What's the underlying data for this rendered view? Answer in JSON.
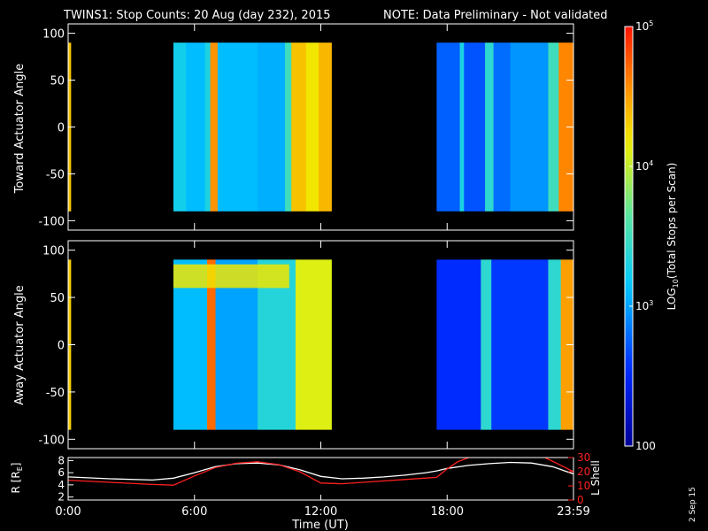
{
  "header": {
    "title": "TWINS1: Stop Counts: 20 Aug (day 232), 2015",
    "note": "NOTE: Data Preliminary - Not validated",
    "note_color": "#ff2020"
  },
  "side_date": "2 Sep 15",
  "colorbar": {
    "label_main": "LOG",
    "label_sub": "10",
    "label_rest": "(Total Stops per Scan)",
    "ticks": [
      {
        "value": 100,
        "base": "100",
        "exp": ""
      },
      {
        "value": 1000,
        "base": "10",
        "exp": "3"
      },
      {
        "value": 10000,
        "base": "10",
        "exp": "4"
      },
      {
        "value": 100000,
        "base": "10",
        "exp": "5"
      }
    ],
    "range": [
      100,
      100000
    ],
    "scale": "log"
  },
  "chart_data": [
    {
      "type": "heatmap",
      "ylabel": "Toward Actuator Angle",
      "ylim": [
        -110,
        110
      ],
      "yticks": [
        "100",
        "50",
        "0",
        "-50",
        "-100"
      ],
      "yticks_values": [
        100,
        50,
        0,
        -50,
        -100
      ],
      "data_angle_range": [
        -90,
        90
      ],
      "x_range_hours": [
        0,
        24
      ],
      "data_blocks_hours": [
        [
          0.0,
          0.12
        ],
        [
          5.0,
          12.5
        ],
        [
          17.5,
          24.0
        ]
      ],
      "bands": [
        {
          "start": 0.0,
          "end": 0.12,
          "log": 4.35
        },
        {
          "start": 5.0,
          "end": 5.6,
          "log": 3.25
        },
        {
          "start": 5.6,
          "end": 6.5,
          "log": 3.1
        },
        {
          "start": 6.5,
          "end": 6.75,
          "log": 3.3
        },
        {
          "start": 6.75,
          "end": 7.1,
          "log": 4.55
        },
        {
          "start": 7.1,
          "end": 9.0,
          "log": 3.1
        },
        {
          "start": 9.0,
          "end": 10.3,
          "log": 3.05
        },
        {
          "start": 10.3,
          "end": 10.6,
          "log": 3.5
        },
        {
          "start": 10.6,
          "end": 11.3,
          "log": 4.35
        },
        {
          "start": 11.3,
          "end": 11.9,
          "log": 4.2
        },
        {
          "start": 11.9,
          "end": 12.5,
          "log": 4.4
        },
        {
          "start": 17.5,
          "end": 18.6,
          "log": 2.75
        },
        {
          "start": 18.6,
          "end": 18.8,
          "log": 3.3
        },
        {
          "start": 18.8,
          "end": 19.8,
          "log": 2.7
        },
        {
          "start": 19.8,
          "end": 20.2,
          "log": 3.4
        },
        {
          "start": 20.2,
          "end": 21.0,
          "log": 2.8
        },
        {
          "start": 21.0,
          "end": 22.8,
          "log": 2.95
        },
        {
          "start": 22.8,
          "end": 23.3,
          "log": 3.5
        },
        {
          "start": 23.3,
          "end": 24.0,
          "log": 4.6
        }
      ]
    },
    {
      "type": "heatmap",
      "ylabel": "Away Actuator Angle",
      "ylim": [
        -110,
        110
      ],
      "yticks": [
        "100",
        "50",
        "0",
        "-50",
        "-100"
      ],
      "yticks_values": [
        100,
        50,
        0,
        -50,
        -100
      ],
      "data_angle_range": [
        -90,
        90
      ],
      "x_range_hours": [
        0,
        24
      ],
      "data_blocks_hours": [
        [
          0.0,
          0.12
        ],
        [
          5.0,
          12.5
        ],
        [
          17.5,
          24.0
        ]
      ],
      "bands": [
        {
          "start": 0.0,
          "end": 0.12,
          "log": 4.3
        },
        {
          "start": 5.0,
          "end": 6.6,
          "log": 3.1
        },
        {
          "start": 6.6,
          "end": 7.0,
          "log": 4.7
        },
        {
          "start": 7.0,
          "end": 9.0,
          "log": 3.0
        },
        {
          "start": 9.0,
          "end": 10.8,
          "log": 3.35
        },
        {
          "start": 10.8,
          "end": 12.5,
          "log": 4.1
        },
        {
          "start": 17.5,
          "end": 19.6,
          "log": 2.55
        },
        {
          "start": 19.6,
          "end": 20.1,
          "log": 3.4
        },
        {
          "start": 20.1,
          "end": 22.8,
          "log": 2.6
        },
        {
          "start": 22.8,
          "end": 23.4,
          "log": 3.4
        },
        {
          "start": 23.4,
          "end": 24.0,
          "log": 4.5
        }
      ],
      "highlight_band": {
        "angle_range": [
          60,
          85
        ],
        "hours": [
          5.0,
          10.5
        ],
        "log": 4.2
      }
    },
    {
      "type": "line",
      "xlabel": "Time (UT)",
      "x_ticks": [
        "0:00",
        "6:00",
        "12:00",
        "18:00",
        "23:59"
      ],
      "x_ticks_hours": [
        0,
        6,
        12,
        18,
        24
      ],
      "x_range_hours": [
        0,
        24
      ],
      "left_axis": {
        "label_main": "R [R",
        "label_sub": "E",
        "label_end": "]",
        "ylim": [
          1.5,
          8.5
        ],
        "ticks": [
          "8",
          "6",
          "4",
          "2"
        ],
        "tick_values": [
          8,
          6,
          4,
          2
        ]
      },
      "right_axis": {
        "label": "L Shell",
        "ylim": [
          0,
          30
        ],
        "ticks": [
          "30",
          "20",
          "10",
          "0"
        ],
        "tick_values": [
          30,
          20,
          10,
          0
        ],
        "color": "#ff2020"
      },
      "series": [
        {
          "axis": "left",
          "color": "#ffffff",
          "x": [
            0,
            2,
            4,
            5,
            6,
            7,
            8,
            9,
            10,
            11,
            12,
            13,
            14,
            15,
            16,
            17,
            17.5,
            18,
            19,
            20,
            21,
            22,
            23,
            24
          ],
          "y": [
            5.3,
            5.0,
            4.8,
            5.1,
            6.0,
            7.0,
            7.5,
            7.6,
            7.3,
            6.5,
            5.4,
            5.0,
            5.1,
            5.3,
            5.6,
            6.0,
            6.3,
            6.7,
            7.2,
            7.5,
            7.7,
            7.6,
            7.0,
            5.8
          ]
        },
        {
          "axis": "right",
          "color": "#ff2020",
          "x": [
            0,
            2,
            4,
            5,
            6,
            7,
            8,
            9,
            10,
            11,
            12,
            13,
            14,
            15,
            16,
            17,
            17.5,
            18,
            18.5,
            19.2
          ],
          "y": [
            14,
            12.5,
            11,
            10.5,
            17,
            23,
            26,
            27,
            25,
            20,
            12,
            11.5,
            12.5,
            13.5,
            14.5,
            15.5,
            16,
            22,
            27,
            31
          ]
        },
        {
          "axis": "right",
          "color": "#ff2020",
          "x": [
            22.5,
            23.2,
            24
          ],
          "y": [
            31,
            26,
            20
          ]
        }
      ]
    }
  ]
}
